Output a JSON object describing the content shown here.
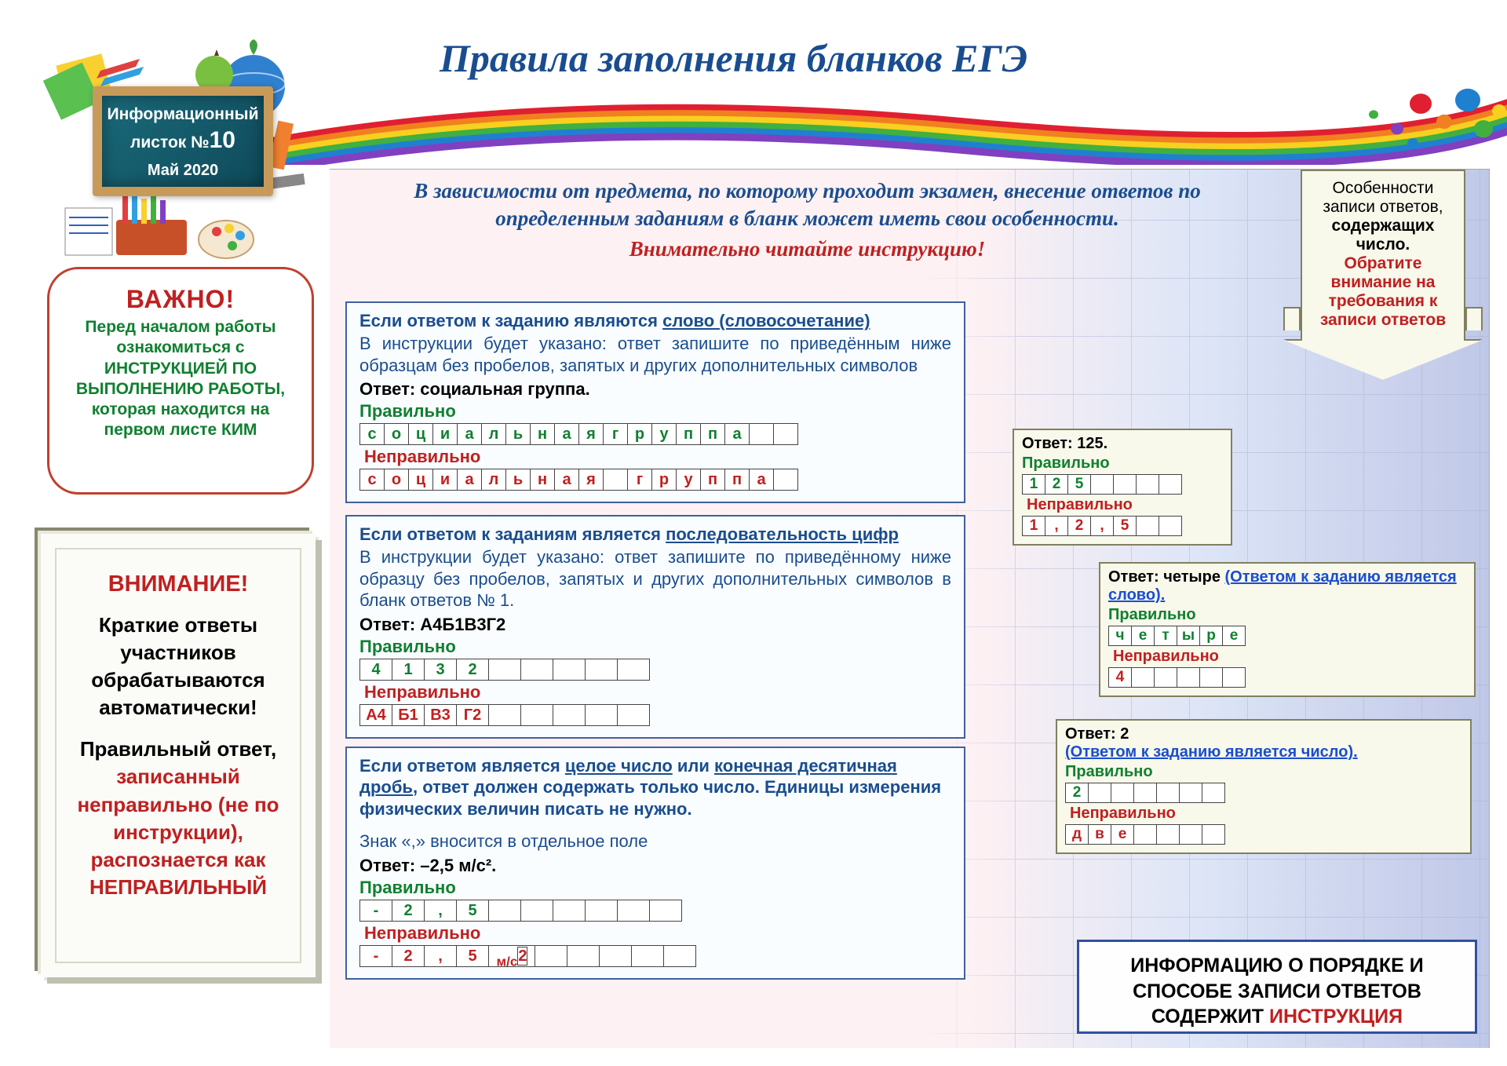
{
  "title": "Правила заполнения бланков ЕГЭ",
  "board": {
    "line1": "Информационный",
    "line2_prefix": "листок ",
    "num_label": "№",
    "number": "10",
    "date": "Май 2020"
  },
  "vazhno": {
    "heading": "ВАЖНО!",
    "text_before": "Перед началом работы ознакомиться с",
    "text_strong": "ИНСТРУКЦИЕЙ ПО ВЫПОЛНЕНИЮ РАБОТЫ, которая находится на первом листе КИМ"
  },
  "vnimanie": {
    "heading": "ВНИМАНИЕ!",
    "p1": "Краткие ответы участников обрабатываются автоматически!",
    "p2_a": "Правильный ответ, ",
    "p2_b": "записанный неправильно (не по инструкции), ",
    "p2_c": "распознается как НЕПРАВИЛЬНЫЙ"
  },
  "intro": {
    "line": "В зависимости от предмета, по которому проходит экзамен, внесение ответов по определенным заданиям в бланк может иметь свои особенности.",
    "red": "Внимательно читайте инструкцию!"
  },
  "arrow": {
    "l1": "Особенности записи ответов,",
    "l2": "содержащих число.",
    "l3": "Обратите внимание на требования к записи ответов"
  },
  "rule1": {
    "head_a": "Если ответом к заданию являются ",
    "head_b": "слово (словосочетание)",
    "body": "В инструкции будет указано: ответ запишите по приведённым ниже образцам без пробелов, запятых и других дополнительных символов",
    "ans": "Ответ: социальная группа.",
    "ok_label": "Правильно",
    "bad_label": "Неправильно",
    "cells_ok": [
      "с",
      "о",
      "ц",
      "и",
      "а",
      "л",
      "ь",
      "н",
      "а",
      "я",
      "г",
      "р",
      "у",
      "п",
      "п",
      "а",
      "",
      ""
    ],
    "cells_bad": [
      "с",
      "о",
      "ц",
      "и",
      "а",
      "л",
      "ь",
      "н",
      "а",
      "я",
      "",
      "г",
      "р",
      "у",
      "п",
      "п",
      "а",
      ""
    ]
  },
  "rule2": {
    "head_a": "Если ответом к заданиям является ",
    "head_b": "последовательность цифр",
    "body": "В инструкции будет указано: ответ запишите по приведённому ниже образцу без пробелов, запятых и других дополнительных символов в бланк ответов № 1.",
    "ans": "Ответ: А4Б1В3Г2",
    "ok_label": "Правильно",
    "bad_label": "Неправильно",
    "cells_ok": [
      "4",
      "1",
      "3",
      "2",
      "",
      "",
      "",
      "",
      ""
    ],
    "cells_bad": [
      "А4",
      "Б1",
      "В3",
      "Г2",
      "",
      "",
      "",
      "",
      ""
    ]
  },
  "rule3": {
    "head_a": "Если ответом является ",
    "head_b": "целое число",
    "head_c": " или ",
    "head_d": "конечная десятичная дробь",
    "body": ", ответ должен содержать только число. Единицы измерения физических величин писать не нужно.",
    "note": "Знак «,» вносится в отдельное поле",
    "ans": "Ответ: –2,5 м/с².",
    "ok_label": "Правильно",
    "bad_label": "Неправильно",
    "cells_ok": [
      "-",
      "2",
      ",",
      "5",
      "",
      "",
      "",
      "",
      "",
      ""
    ],
    "cells_bad": [
      "-",
      "2",
      ",",
      "5",
      "м/с²",
      "",
      "",
      "",
      "",
      ""
    ]
  },
  "ex1": {
    "ans": "Ответ: 125.",
    "ok_label": "Правильно",
    "bad_label": "Неправильно",
    "cells_ok": [
      "1",
      "2",
      "5",
      "",
      "",
      "",
      ""
    ],
    "cells_bad": [
      "1",
      ",",
      "2",
      ",",
      "5",
      "",
      ""
    ]
  },
  "ex2": {
    "ans_a": "Ответ: четыре ",
    "ans_b": "(Ответом к заданию является слово).",
    "ok_label": "Правильно",
    "bad_label": "Неправильно",
    "cells_ok": [
      "ч",
      "е",
      "т",
      "ы",
      "р",
      "е"
    ],
    "cells_bad": [
      "4",
      "",
      "",
      "",
      "",
      ""
    ]
  },
  "ex3": {
    "ans": "Ответ: 2",
    "link": "(Ответом к заданию является число).",
    "ok_label": "Правильно",
    "bad_label": "Неправильно",
    "cells_ok": [
      "2",
      "",
      "",
      "",
      "",
      "",
      ""
    ],
    "cells_bad": [
      "д",
      "в",
      "е",
      "",
      "",
      "",
      ""
    ]
  },
  "info": {
    "l1": "ИНФОРМАЦИЮ О ПОРЯДКЕ И СПОСОБЕ ЗАПИСИ ОТВЕТОВ СОДЕРЖИТ ",
    "l2": "ИНСТРУКЦИЯ"
  }
}
